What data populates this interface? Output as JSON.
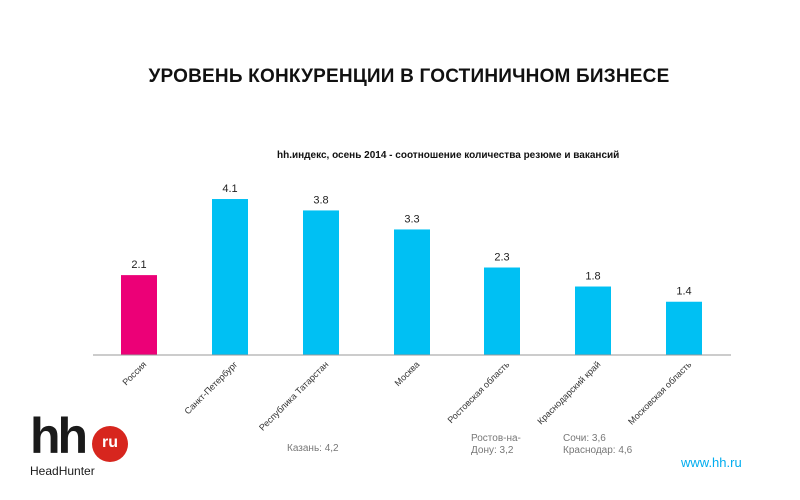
{
  "title": "УРОВЕНЬ КОНКУРЕНЦИИ В ГОСТИНИЧНОМ БИЗНЕСЕ",
  "chart_data": {
    "type": "bar",
    "subtitle": "hh.индекс, осень 2014 - соотношение количества резюме и вакансий",
    "categories": [
      "Россия",
      "Санкт-Петербург",
      "Республика Татарстан",
      "Москва",
      "Ростовская область",
      "Краснодарский край",
      "Московская область"
    ],
    "values": [
      2.1,
      4.1,
      3.8,
      3.3,
      2.3,
      1.8,
      1.4
    ],
    "value_labels": [
      "2.1",
      "4.1",
      "3.8",
      "3.3",
      "2.3",
      "1.8",
      "1.4"
    ],
    "colors": [
      "#ec0077",
      "#00c0f3",
      "#00c0f3",
      "#00c0f3",
      "#00c0f3",
      "#00c0f3",
      "#00c0f3"
    ],
    "ylim": [
      0,
      4.6
    ],
    "xlabel": "",
    "ylabel": ""
  },
  "notes": {
    "kazan": "Казань: 4,2",
    "rostov_line1": "Ростов-на-",
    "rostov_line2": "Дону: 3,2",
    "sochi": "Сочи: 3,6",
    "krasnodar": "Краснодар: 4,6"
  },
  "logo": {
    "main": "hh",
    "badge": "ru",
    "sub": "HeadHunter"
  },
  "site": "www.hh.ru",
  "colors": {
    "accent": "#00c0f3",
    "highlight": "#ec0077",
    "logo_red": "#d7261e"
  }
}
